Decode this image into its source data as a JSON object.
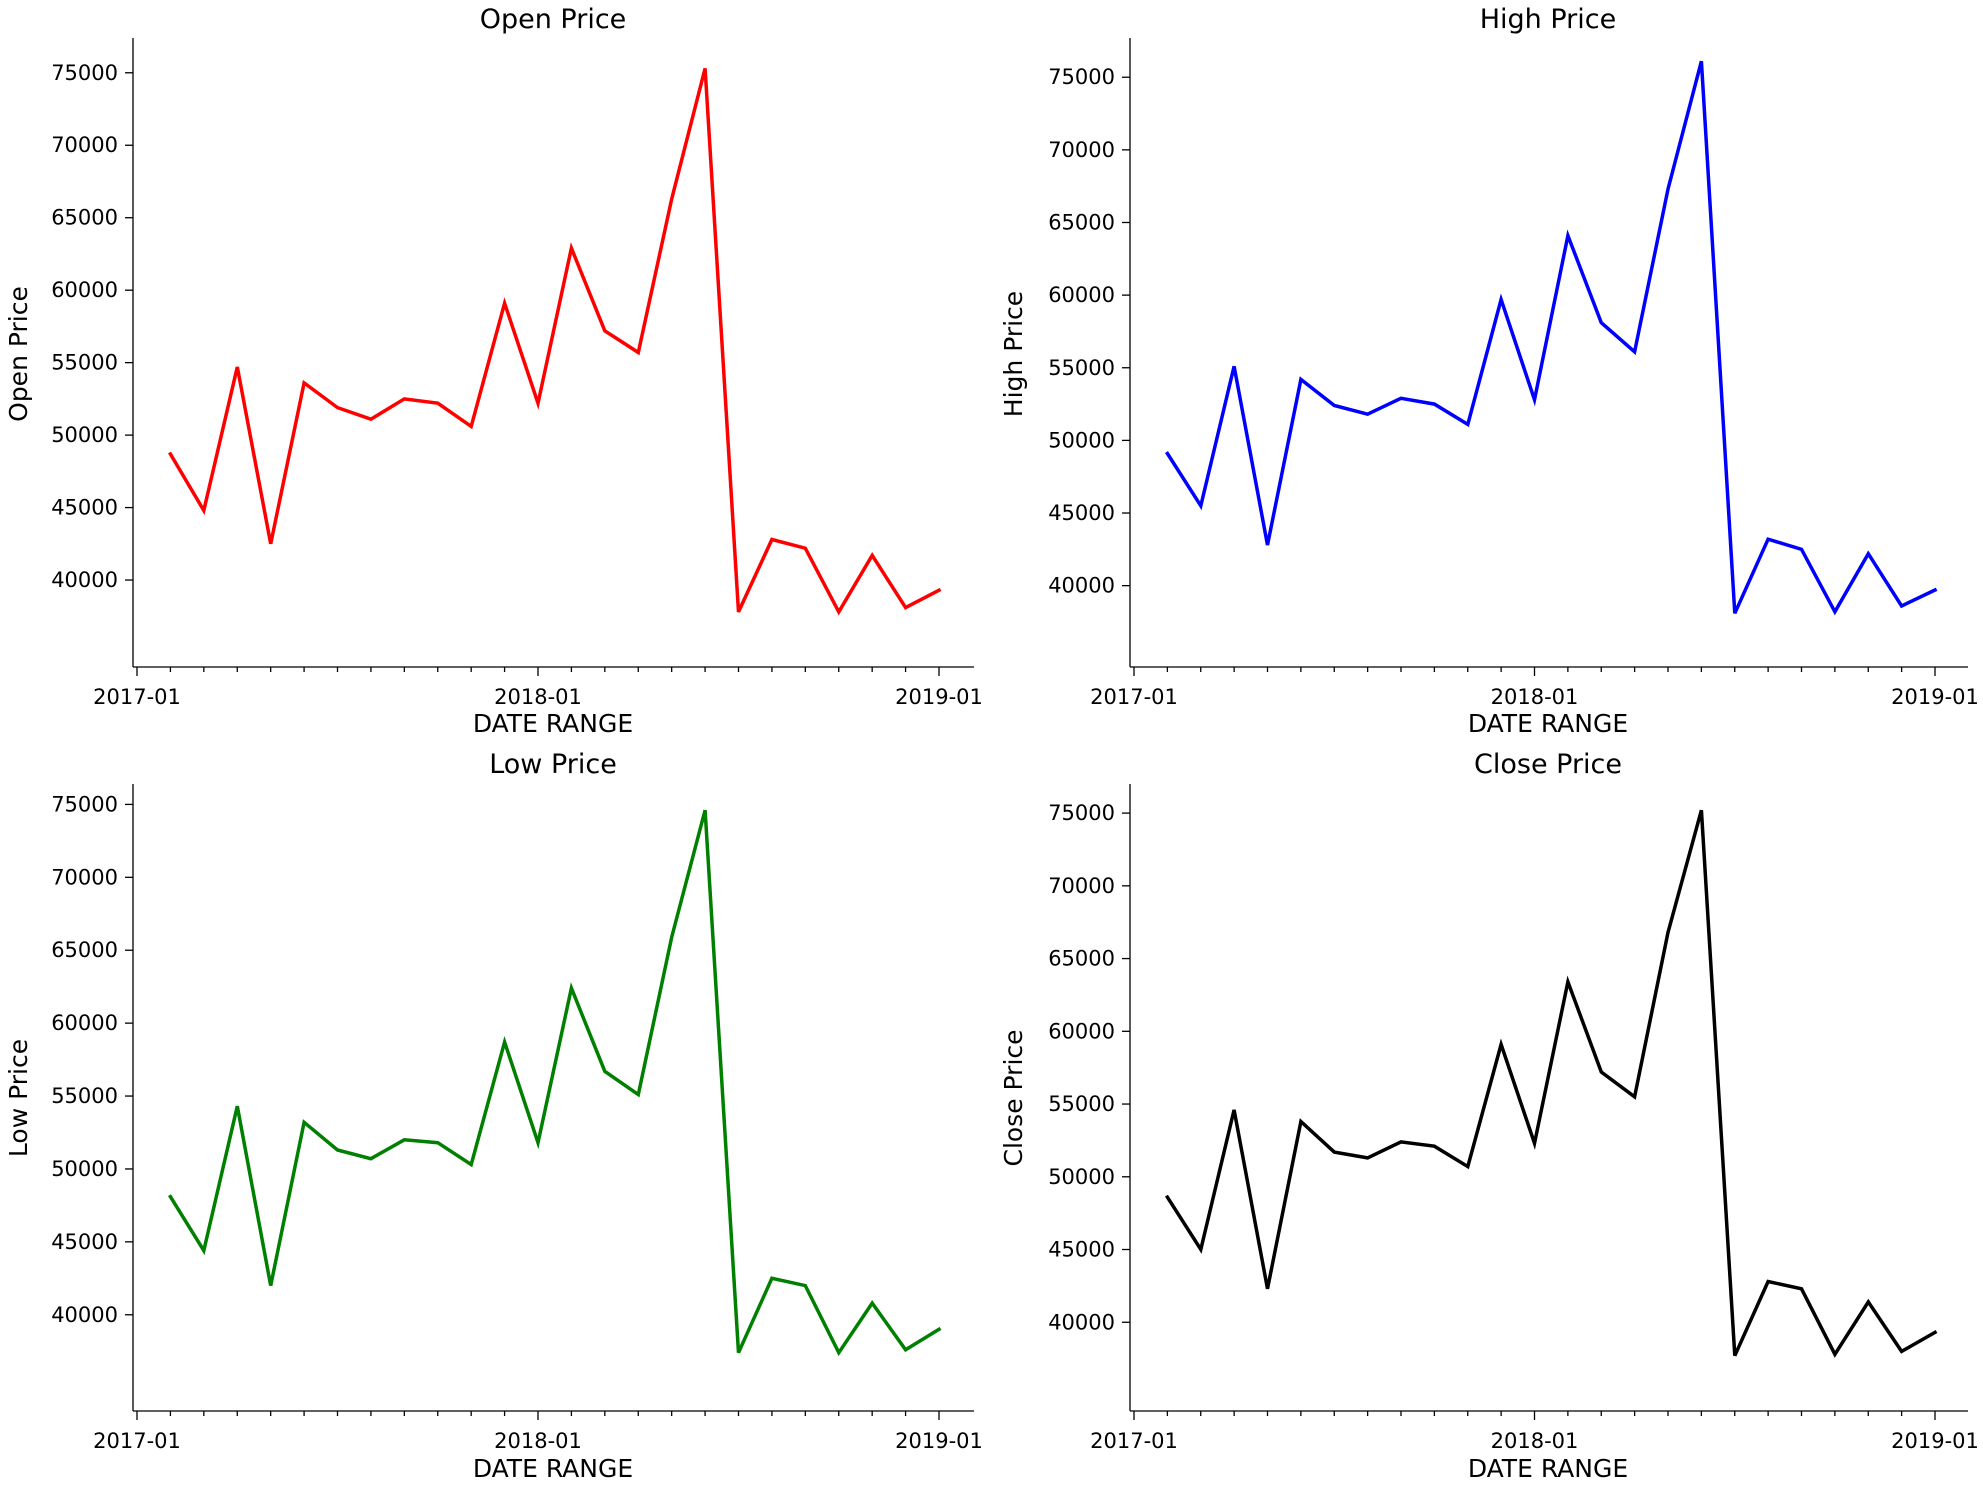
{
  "chart_data": [
    {
      "type": "line",
      "title": "Open Price",
      "xlabel": "DATE RANGE",
      "ylabel": "Open Price",
      "color": "#ff0000",
      "x": [
        "2017-02",
        "2017-03",
        "2017-04",
        "2017-05",
        "2017-06",
        "2017-07",
        "2017-08",
        "2017-09",
        "2017-10",
        "2017-11",
        "2017-12",
        "2018-01",
        "2018-02",
        "2018-03",
        "2018-04",
        "2018-05",
        "2018-06",
        "2018-07",
        "2018-08",
        "2018-09",
        "2018-10",
        "2018-11",
        "2018-12",
        "2019-01"
      ],
      "values": [
        48700,
        44800,
        54700,
        42500,
        53600,
        51900,
        51100,
        52500,
        52200,
        50600,
        59100,
        52200,
        62900,
        57200,
        55700,
        66300,
        75300,
        37800,
        42800,
        42200,
        37800,
        41700,
        38100,
        39300
      ],
      "xticks": [
        "2017-01",
        "2018-01",
        "2019-01"
      ],
      "yticks": [
        40000,
        45000,
        50000,
        55000,
        60000,
        65000,
        70000,
        75000
      ],
      "ylim": [
        34000,
        77400
      ]
    },
    {
      "type": "line",
      "title": "High Price",
      "xlabel": "DATE RANGE",
      "ylabel": "High Price",
      "color": "#0000ff",
      "x": [
        "2017-02",
        "2017-03",
        "2017-04",
        "2017-05",
        "2017-06",
        "2017-07",
        "2017-08",
        "2017-09",
        "2017-10",
        "2017-11",
        "2017-12",
        "2018-01",
        "2018-02",
        "2018-03",
        "2018-04",
        "2018-05",
        "2018-06",
        "2018-07",
        "2018-08",
        "2018-09",
        "2018-10",
        "2018-11",
        "2018-12",
        "2019-01"
      ],
      "values": [
        49100,
        45500,
        55100,
        42800,
        54200,
        52400,
        51800,
        52900,
        52500,
        51100,
        59700,
        52800,
        64100,
        58100,
        56100,
        67300,
        76100,
        38100,
        43200,
        42500,
        38200,
        42200,
        38600,
        39700
      ],
      "xticks": [
        "2017-01",
        "2018-01",
        "2019-01"
      ],
      "yticks": [
        40000,
        45000,
        50000,
        55000,
        60000,
        65000,
        70000,
        75000
      ],
      "ylim": [
        34400,
        77700
      ]
    },
    {
      "type": "line",
      "title": "Low Price",
      "xlabel": "DATE RANGE",
      "ylabel": "Low Price",
      "color": "#008000",
      "x": [
        "2017-02",
        "2017-03",
        "2017-04",
        "2017-05",
        "2017-06",
        "2017-07",
        "2017-08",
        "2017-09",
        "2017-10",
        "2017-11",
        "2017-12",
        "2018-01",
        "2018-02",
        "2018-03",
        "2018-04",
        "2018-05",
        "2018-06",
        "2018-07",
        "2018-08",
        "2018-09",
        "2018-10",
        "2018-11",
        "2018-12",
        "2019-01"
      ],
      "values": [
        48100,
        44400,
        54300,
        42000,
        53200,
        51300,
        50700,
        52000,
        51800,
        50300,
        58700,
        51800,
        62400,
        56700,
        55100,
        65900,
        74600,
        37400,
        42500,
        42000,
        37400,
        40800,
        37600,
        39000
      ],
      "xticks": [
        "2017-01",
        "2018-01",
        "2019-01"
      ],
      "yticks": [
        40000,
        45000,
        50000,
        55000,
        60000,
        65000,
        70000,
        75000
      ],
      "ylim": [
        33400,
        76400
      ]
    },
    {
      "type": "line",
      "title": "Close Price",
      "xlabel": "DATE RANGE",
      "ylabel": "Close Price",
      "color": "#000000",
      "x": [
        "2017-02",
        "2017-03",
        "2017-04",
        "2017-05",
        "2017-06",
        "2017-07",
        "2017-08",
        "2017-09",
        "2017-10",
        "2017-11",
        "2017-12",
        "2018-01",
        "2018-02",
        "2018-03",
        "2018-04",
        "2018-05",
        "2018-06",
        "2018-07",
        "2018-08",
        "2018-09",
        "2018-10",
        "2018-11",
        "2018-12",
        "2019-01"
      ],
      "values": [
        48600,
        45000,
        54600,
        42300,
        53800,
        51700,
        51300,
        52400,
        52100,
        50700,
        59100,
        52300,
        63400,
        57200,
        55500,
        66800,
        75200,
        37700,
        42800,
        42300,
        37800,
        41400,
        38000,
        39300
      ],
      "xticks": [
        "2017-01",
        "2018-01",
        "2019-01"
      ],
      "yticks": [
        40000,
        45000,
        50000,
        55000,
        60000,
        65000,
        70000,
        75000
      ],
      "ylim": [
        33900,
        77000
      ]
    }
  ]
}
